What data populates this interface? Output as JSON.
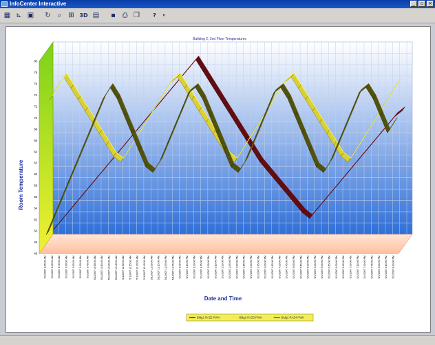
{
  "window": {
    "title": "InfoCenter Interactive",
    "controls": [
      "minimize",
      "restore",
      "close"
    ]
  },
  "toolbar": {
    "buttons": [
      {
        "icon": "chart-gallery-icon"
      },
      {
        "icon": "axis-scale-icon"
      },
      {
        "icon": "color-fill-icon"
      },
      {
        "icon": "rotate-icon"
      },
      {
        "icon": "zoom-icon"
      },
      {
        "icon": "grid-icon"
      },
      {
        "icon": "3d-toggle-icon",
        "label": "3D"
      },
      {
        "icon": "data-editor-icon"
      },
      {
        "icon": "save-icon"
      },
      {
        "icon": "print-icon"
      },
      {
        "icon": "copy-icon"
      },
      {
        "icon": "help-icon",
        "label": "?"
      }
    ]
  },
  "chart_data": {
    "type": "line",
    "style": "3d-ribbon",
    "title": "Building 2, 2nd Floor Temperatures",
    "xlabel": "Date and Time",
    "ylabel": "Room Temperature",
    "ylim": [
      46,
      80
    ],
    "yticks": [
      46,
      48,
      50,
      52,
      54,
      56,
      58,
      60,
      62,
      64,
      66,
      68,
      70,
      72,
      74,
      76,
      78,
      80
    ],
    "grid": true,
    "legend_position": "bottom-center",
    "background": {
      "top_color": "#ffffff",
      "bottom_color": "#2f6fd8",
      "floor_color": "#ffc0a0",
      "wall_color": "#7bd21a"
    },
    "categories": [
      "5/1/2007 8:15:00 AM",
      "5/1/2007 8:30:00 AM",
      "5/1/2007 8:45:00 AM",
      "5/1/2007 9:00:00 AM",
      "5/1/2007 9:15:00 AM",
      "5/1/2007 9:30:00 AM",
      "5/1/2007 9:45:00 AM",
      "5/1/2007 10:00:00 AM",
      "5/1/2007 10:15:00 AM",
      "5/1/2007 10:30:00 AM",
      "5/1/2007 10:45:00 AM",
      "5/1/2007 11:00:00 AM",
      "5/1/2007 11:15:00 AM",
      "5/1/2007 11:30:00 AM",
      "5/1/2007 11:45:00 AM",
      "5/1/2007 12:00:00 PM",
      "5/1/2007 12:15:00 PM",
      "5/1/2007 12:30:00 PM",
      "5/1/2007 12:45:00 PM",
      "5/1/2007 1:00:00 PM",
      "5/1/2007 1:15:00 PM",
      "5/1/2007 1:30:00 PM",
      "5/1/2007 1:45:00 PM",
      "5/1/2007 2:00:00 PM",
      "5/1/2007 2:15:00 PM",
      "5/1/2007 2:30:00 PM",
      "5/1/2007 2:45:00 PM",
      "5/1/2007 3:00:00 PM",
      "5/1/2007 3:15:00 PM",
      "5/1/2007 3:30:00 PM",
      "5/1/2007 3:45:00 PM",
      "5/1/2007 4:00:00 PM",
      "5/1/2007 4:15:00 PM",
      "5/1/2007 4:30:00 PM",
      "5/1/2007 4:45:00 PM",
      "5/1/2007 5:00:00 PM",
      "5/1/2007 5:15:00 PM",
      "5/1/2007 5:30:00 PM",
      "5/1/2007 5:45:00 PM",
      "5/1/2007 6:00:00 PM",
      "5/1/2007 6:15:00 PM",
      "5/1/2007 6:30:00 PM",
      "5/1/2007 6:45:00 PM",
      "5/1/2007 7:00:00 PM",
      "5/1/2007 7:15:00 PM",
      "5/1/2007 7:30:00 PM",
      "5/1/2007 7:45:00 PM",
      "5/1/2007 8:00:00 PM",
      "5/1/2007 8:15:00 PM",
      "5/1/2007 8:30:00 PM"
    ],
    "series": [
      {
        "name": "Bldg2 RAZ2 PWH",
        "color": "#6b0f14",
        "values": [
          48,
          49.5,
          51,
          52.5,
          54,
          55.5,
          57,
          58.5,
          60,
          61.5,
          63,
          64.5,
          66,
          67.5,
          69,
          70.5,
          72,
          73.5,
          75,
          76.5,
          78,
          76,
          74,
          72,
          70,
          68,
          66,
          64,
          62,
          60,
          58.5,
          57,
          55.5,
          54,
          52.5,
          51,
          50,
          51.5,
          53,
          54.5,
          56,
          57.5,
          59,
          60.5,
          62,
          63.5,
          65,
          66.5,
          68,
          69
        ]
      },
      {
        "name": "Bldg2 RAZ3 PWH",
        "color": "#f2e63a",
        "values": [
          72,
          74,
          76,
          74,
          72,
          70,
          68,
          66,
          64,
          62,
          61,
          63,
          65,
          67,
          69,
          71,
          73,
          75,
          76,
          74,
          72,
          70,
          68,
          66,
          64,
          62,
          61,
          63,
          65,
          67,
          69,
          71,
          73,
          75,
          76,
          74,
          72,
          70,
          68,
          66,
          64,
          62,
          61,
          63,
          65,
          67,
          69,
          71,
          73,
          75
        ]
      },
      {
        "name": "Bldg2 RAZ4 PWH",
        "color": "#5a5a12",
        "values": [
          49,
          52,
          55,
          58,
          61,
          64,
          67,
          70,
          73,
          75,
          73,
          70,
          67,
          64,
          61,
          60,
          62,
          65,
          68,
          71,
          74,
          75,
          73,
          70,
          67,
          64,
          61,
          60,
          62,
          65,
          68,
          71,
          74,
          75,
          73,
          70,
          67,
          64,
          61,
          60,
          62,
          65,
          68,
          71,
          74,
          75,
          73,
          70,
          67,
          69
        ]
      }
    ]
  }
}
